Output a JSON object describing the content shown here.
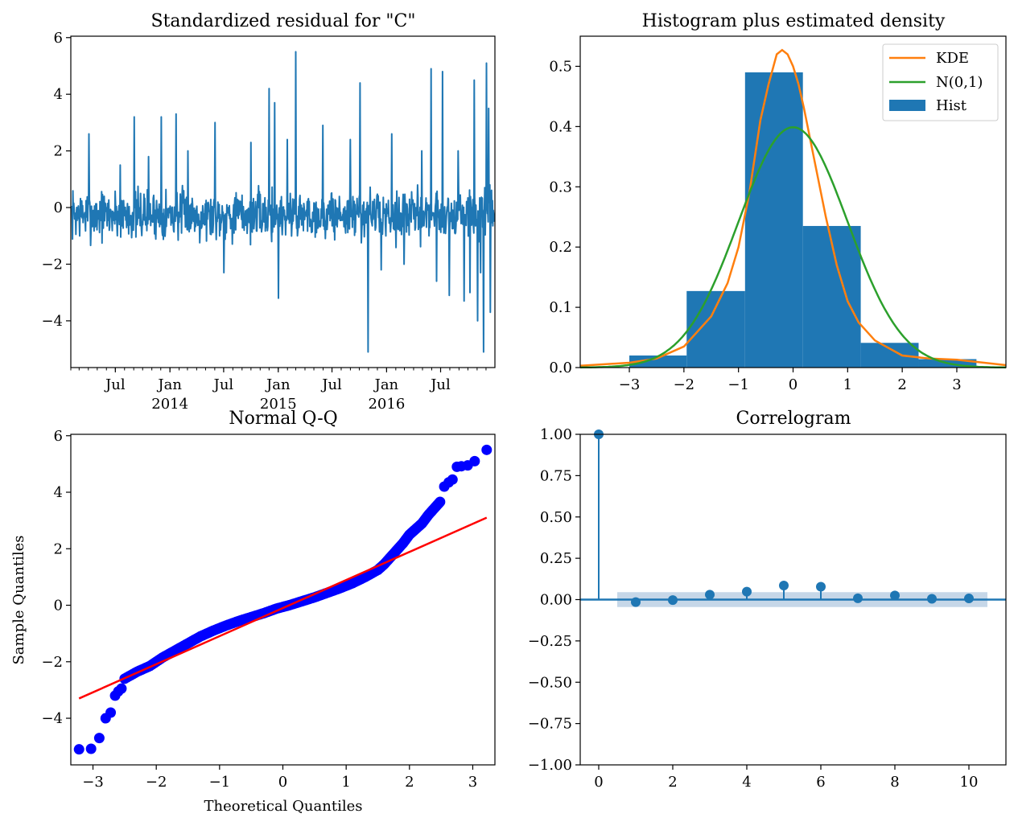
{
  "colors": {
    "blue": "#1f77b4",
    "orange": "#ff7f0e",
    "green": "#2ca02c",
    "red": "#ff0000",
    "qq_marker": "#0000ff",
    "conf_band": "#c6d7e8"
  },
  "chart_data": [
    {
      "panel": "residual",
      "type": "line",
      "title": "Standardized residual for \"C\"",
      "xlabel": "",
      "ylabel": "",
      "ylim": [
        -5.65,
        6.05
      ],
      "yticks": [
        -4,
        -2,
        0,
        2,
        4,
        6
      ],
      "ytick_labels": [
        "−4",
        "−2",
        "0",
        "2",
        "4",
        "6"
      ],
      "x_tick_labels": [
        {
          "date": "2013-07",
          "label": "Jul",
          "year": ""
        },
        {
          "date": "2014-01",
          "label": "Jan",
          "year": "2014"
        },
        {
          "date": "2014-07",
          "label": "Jul",
          "year": ""
        },
        {
          "date": "2015-01",
          "label": "Jan",
          "year": "2015"
        },
        {
          "date": "2015-07",
          "label": "Jul",
          "year": ""
        },
        {
          "date": "2016-01",
          "label": "Jan",
          "year": "2016"
        },
        {
          "date": "2016-07",
          "label": "Jul",
          "year": ""
        }
      ],
      "x_range": [
        "2013-02",
        "2016-12"
      ],
      "spikes": [
        {
          "date": "2013-04-01",
          "value": 2.6
        },
        {
          "date": "2013-07-15",
          "value": 1.5
        },
        {
          "date": "2013-09-01",
          "value": 3.2
        },
        {
          "date": "2013-10-20",
          "value": 1.8
        },
        {
          "date": "2013-12-01",
          "value": 3.2
        },
        {
          "date": "2014-01-20",
          "value": 3.3
        },
        {
          "date": "2014-03-01",
          "value": 2.0
        },
        {
          "date": "2014-06-01",
          "value": 3.0
        },
        {
          "date": "2014-07-01",
          "value": -2.3
        },
        {
          "date": "2014-10-01",
          "value": 2.3
        },
        {
          "date": "2014-12-01",
          "value": 4.2
        },
        {
          "date": "2014-12-20",
          "value": 3.7
        },
        {
          "date": "2015-01-01",
          "value": -3.2
        },
        {
          "date": "2015-02-01",
          "value": 2.4
        },
        {
          "date": "2015-03-01",
          "value": 5.5
        },
        {
          "date": "2015-06-01",
          "value": 2.9
        },
        {
          "date": "2015-09-01",
          "value": 2.4
        },
        {
          "date": "2015-10-05",
          "value": 4.4
        },
        {
          "date": "2015-11-01",
          "value": -5.1
        },
        {
          "date": "2015-12-15",
          "value": -2.2
        },
        {
          "date": "2016-01-20",
          "value": 2.6
        },
        {
          "date": "2016-03-01",
          "value": -2.0
        },
        {
          "date": "2016-05-01",
          "value": 2.0
        },
        {
          "date": "2016-06-01",
          "value": 4.9
        },
        {
          "date": "2016-06-20",
          "value": -2.6
        },
        {
          "date": "2016-07-10",
          "value": 4.8
        },
        {
          "date": "2016-08-01",
          "value": -3.1
        },
        {
          "date": "2016-09-01",
          "value": 2.0
        },
        {
          "date": "2016-09-20",
          "value": -3.3
        },
        {
          "date": "2016-10-10",
          "value": -3.0
        },
        {
          "date": "2016-10-25",
          "value": 4.5
        },
        {
          "date": "2016-11-05",
          "value": -4.0
        },
        {
          "date": "2016-11-15",
          "value": -2.3
        },
        {
          "date": "2016-11-25",
          "value": -5.1
        },
        {
          "date": "2016-12-05",
          "value": 5.1
        },
        {
          "date": "2016-12-12",
          "value": 3.5
        },
        {
          "date": "2016-12-18",
          "value": -3.7
        }
      ]
    },
    {
      "panel": "histogram",
      "type": "bar",
      "title": "Histogram plus estimated density",
      "xlim": [
        -3.9,
        3.9
      ],
      "ylim": [
        0,
        0.55
      ],
      "xticks": [
        -3,
        -2,
        -1,
        0,
        1,
        2,
        3
      ],
      "xtick_labels": [
        "−3",
        "−2",
        "−1",
        "0",
        "1",
        "2",
        "3"
      ],
      "yticks": [
        0.0,
        0.1,
        0.2,
        0.3,
        0.4,
        0.5
      ],
      "ytick_labels": [
        "0.0",
        "0.1",
        "0.2",
        "0.3",
        "0.4",
        "0.5"
      ],
      "bins": [
        {
          "x0": -3.0,
          "x1": -1.95,
          "height": 0.02
        },
        {
          "x0": -1.95,
          "x1": -0.88,
          "height": 0.127
        },
        {
          "x0": -0.88,
          "x1": 0.18,
          "height": 0.49
        },
        {
          "x0": 0.18,
          "x1": 1.24,
          "height": 0.235
        },
        {
          "x0": 1.24,
          "x1": 2.3,
          "height": 0.041
        },
        {
          "x0": 2.3,
          "x1": 3.36,
          "height": 0.014
        }
      ],
      "kde": {
        "x": [
          -3.9,
          -3.0,
          -2.5,
          -2.0,
          -1.5,
          -1.2,
          -1.0,
          -0.8,
          -0.6,
          -0.45,
          -0.3,
          -0.2,
          -0.1,
          0.0,
          0.1,
          0.2,
          0.4,
          0.6,
          0.8,
          1.0,
          1.2,
          1.5,
          2.0,
          2.5,
          3.0,
          3.5,
          3.9
        ],
        "y": [
          0.003,
          0.008,
          0.015,
          0.035,
          0.085,
          0.14,
          0.2,
          0.29,
          0.41,
          0.47,
          0.52,
          0.527,
          0.52,
          0.5,
          0.47,
          0.43,
          0.34,
          0.25,
          0.17,
          0.11,
          0.075,
          0.045,
          0.02,
          0.015,
          0.013,
          0.008,
          0.004
        ]
      },
      "normal_pdf": {
        "mean": 0,
        "sd": 1
      },
      "legend": {
        "placement": "upper right",
        "entries": [
          "KDE",
          "N(0,1)",
          "Hist"
        ]
      }
    },
    {
      "panel": "qq",
      "type": "scatter",
      "title": "Normal Q-Q",
      "xlabel": "Theoretical Quantiles",
      "ylabel": "Sample Quantiles",
      "xlim": [
        -3.35,
        3.35
      ],
      "ylim": [
        -5.65,
        6.05
      ],
      "xticks": [
        -3,
        -2,
        -1,
        0,
        1,
        2,
        3
      ],
      "xtick_labels": [
        "−3",
        "−2",
        "−1",
        "0",
        "1",
        "2",
        "3"
      ],
      "yticks": [
        -4,
        -2,
        0,
        2,
        4,
        6
      ],
      "ytick_labels": [
        "−4",
        "−2",
        "0",
        "2",
        "4",
        "6"
      ],
      "reference_line": {
        "x": [
          -3.22,
          3.22
        ],
        "y": [
          -3.3,
          3.1
        ]
      },
      "outer_points": {
        "x": [
          -3.22,
          -3.03,
          -2.9,
          -2.8,
          -2.72,
          -2.65,
          -2.6,
          -2.55,
          2.55,
          2.62,
          2.68,
          2.75,
          2.82,
          2.92,
          3.03,
          3.22
        ],
        "y": [
          -5.1,
          -5.08,
          -4.7,
          -4.0,
          -3.8,
          -3.2,
          -3.05,
          -2.95,
          4.2,
          4.35,
          4.45,
          4.9,
          4.92,
          4.95,
          5.1,
          5.5
        ]
      },
      "curve_points": {
        "x": [
          -2.5,
          -2.3,
          -2.1,
          -1.9,
          -1.7,
          -1.5,
          -1.3,
          -1.1,
          -0.9,
          -0.7,
          -0.5,
          -0.3,
          -0.1,
          0.1,
          0.3,
          0.5,
          0.7,
          0.9,
          1.1,
          1.3,
          1.5,
          1.6,
          1.7,
          1.8,
          1.9,
          2.0,
          2.1,
          2.2,
          2.3,
          2.4,
          2.5
        ],
        "y": [
          -2.6,
          -2.35,
          -2.15,
          -1.85,
          -1.6,
          -1.35,
          -1.1,
          -0.9,
          -0.72,
          -0.56,
          -0.42,
          -0.28,
          -0.12,
          0.0,
          0.14,
          0.28,
          0.44,
          0.6,
          0.78,
          1.0,
          1.25,
          1.45,
          1.7,
          1.95,
          2.2,
          2.5,
          2.7,
          2.9,
          3.2,
          3.45,
          3.7
        ]
      }
    },
    {
      "panel": "correlogram",
      "type": "scatter",
      "title": "Correlogram",
      "xlim": [
        -0.5,
        11.0
      ],
      "ylim": [
        -1.0,
        1.0
      ],
      "xticks": [
        0,
        2,
        4,
        6,
        8,
        10
      ],
      "xtick_labels": [
        "0",
        "2",
        "4",
        "6",
        "8",
        "10"
      ],
      "yticks": [
        -1.0,
        -0.75,
        -0.5,
        -0.25,
        0.0,
        0.25,
        0.5,
        0.75,
        1.0
      ],
      "ytick_labels": [
        "−1.00",
        "−0.75",
        "−0.50",
        "−0.25",
        "0.00",
        "0.25",
        "0.50",
        "0.75",
        "1.00"
      ],
      "lags": [
        0,
        1,
        2,
        3,
        4,
        5,
        6,
        7,
        8,
        9,
        10
      ],
      "acf": [
        1.0,
        -0.015,
        -0.003,
        0.03,
        0.048,
        0.085,
        0.078,
        0.008,
        0.025,
        0.005,
        0.007
      ],
      "confidence_band": {
        "lower": -0.045,
        "upper": 0.045,
        "x_range": [
          0.5,
          10.5
        ]
      }
    }
  ]
}
